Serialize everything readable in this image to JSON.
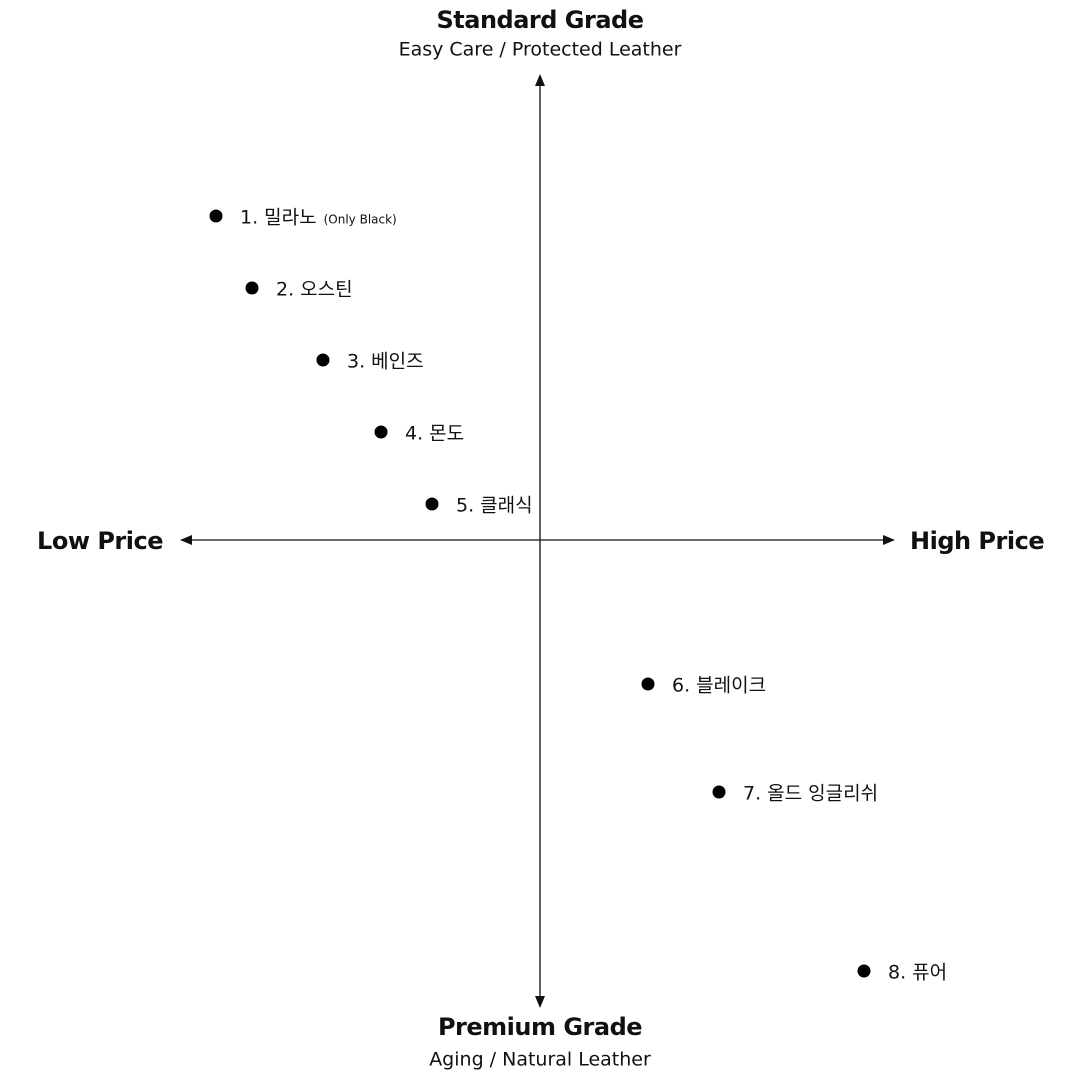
{
  "axes": {
    "top": {
      "title": "Standard Grade",
      "subtitle": "Easy Care / Protected Leather"
    },
    "bottom": {
      "title": "Premium Grade",
      "subtitle": "Aging / Natural Leather"
    },
    "left": "Low Price",
    "right": "High Price"
  },
  "items": [
    {
      "label": "1. 밀라노",
      "note": "(Only Black)"
    },
    {
      "label": "2. 오스틴"
    },
    {
      "label": "3. 베인즈"
    },
    {
      "label": "4. 몬도"
    },
    {
      "label": "5. 클래식"
    },
    {
      "label": "6. 블레이크"
    },
    {
      "label": "7. 올드 잉글리쉬"
    },
    {
      "label": "8. 퓨어"
    }
  ]
}
